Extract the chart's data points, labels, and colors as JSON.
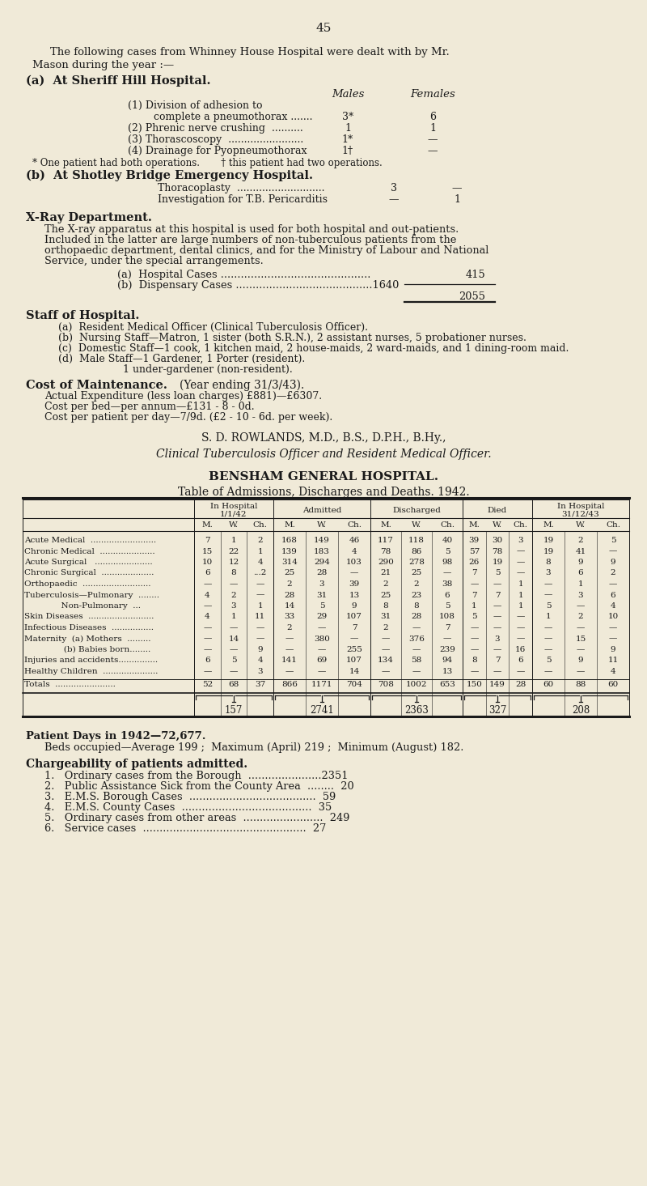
{
  "bg_color": "#f0ead8",
  "text_color": "#1a1a1a",
  "page_number": "45",
  "intro_line1": "The following cases from Whinney House Hospital were dealt with by Mr.",
  "intro_line2": "Mason during the year :—",
  "section_a_title": "(a)  At Sheriff Hill Hospital.",
  "males_header": "Males",
  "females_header": "Females",
  "sheriff_rows": [
    [
      "(1) Division of adhesion to",
      "",
      ""
    ],
    [
      "        complete a pneumothorax .......",
      "3*",
      "6"
    ],
    [
      "(2) Phrenic nerve crushing  ..........",
      "1",
      "1"
    ],
    [
      "(3) Thorascoscopy  ........................",
      "1*",
      "—"
    ],
    [
      "(4) Drainage for Pyopneumothorax",
      "1†",
      "—"
    ]
  ],
  "sheriff_footnote": "* One patient had both operations.       † this patient had two operations.",
  "section_b_title": "(b)  At Shotley Bridge Emergency Hospital.",
  "shotley_rows": [
    [
      "Thoracoplasty  ............................",
      "3",
      "—"
    ],
    [
      "Investigation for T.B. Pericarditis",
      "—",
      "1"
    ]
  ],
  "xray_title": "X-Ray Department.",
  "xray_lines": [
    "The X-ray apparatus at this hospital is used for both hospital and out-patients.",
    "Included in the latter are large numbers of non-tuberculous patients from the",
    "orthopaedic department, dental clinics, and for the Ministry of Labour and National",
    "Service, under the special arrangements."
  ],
  "xray_a": "(a)  Hospital Cases .............................................",
  "xray_a_val": "415",
  "xray_b": "(b)  Dispensary Cases .........................................1640",
  "xray_total": "2055",
  "staff_title": "Staff of Hospital.",
  "staff_rows": [
    "(a)  Resident Medical Officer (Clinical Tuberculosis Officer).",
    "(b)  Nursing Staff—Matron, 1 sister (both S.R.N.), 2 assistant nurses, 5 probationer nurses.",
    "(c)  Domestic Staff—1 cook, 1 kitchen maid, 2 house-maids, 2 ward-maids, and 1 dining-room maid.",
    "(d)  Male Staff—1 Gardener, 1 Porter (resident).",
    "                    1 under-gardener (non-resident)."
  ],
  "cost_title": "Cost of Maintenance.",
  "cost_subtitle": "(Year ending 31/3/43).",
  "cost_rows": [
    "Actual Expenditure (less loan charges) £881)—£6307.",
    "Cost per bed—per annum—£131 - 8 - 0d.",
    "Cost per patient per day—7/9d. (£2 - 10 - 6d. per week)."
  ],
  "signature1": "S. D. ROWLANDS, M.D., B.S., D.P.H., B.Hy.,",
  "signature2": "Clinical Tuberculosis Officer and Resident Medical Officer.",
  "bensham_title": "BENSHAM GENERAL HOSPITAL.",
  "bensham_subtitle": "Table of Admissions, Discharges and Deaths. 1942.",
  "group_labels": [
    "In Hospital\n1/1/42",
    "Admitted",
    "Discharged",
    "Died",
    "In Hospital\n31/12/43"
  ],
  "sub_labels": [
    "M.",
    "W.",
    "Ch."
  ],
  "table_rows": [
    [
      "Acute Medical  .........................",
      "7",
      "1",
      "2",
      "168",
      "149",
      "46",
      "117",
      "118",
      "40",
      "39",
      "30",
      "3",
      "19",
      "2",
      "5"
    ],
    [
      "Chronic Medical  .....................",
      "15",
      "22",
      "1",
      "139",
      "183",
      "4",
      "78",
      "86",
      "5",
      "57",
      "78",
      "—",
      "19",
      "41",
      "—"
    ],
    [
      "Acute Surgical   ......................",
      "10",
      "12",
      "4",
      "314",
      "294",
      "103",
      "290",
      "278",
      "98",
      "26",
      "19",
      "—",
      "8",
      "9",
      "9"
    ],
    [
      "Chronic Surgical  ....................",
      "6",
      "8",
      "...2",
      "25",
      "28",
      "—",
      "21",
      "25",
      "—",
      "7",
      "5",
      "—",
      "3",
      "6",
      "2"
    ],
    [
      "Orthopaedic  ..........................",
      "—",
      "—",
      "—",
      "2",
      "3",
      "39",
      "2",
      "2",
      "38",
      "—",
      "—",
      "1",
      "—",
      "1",
      "—"
    ],
    [
      "Tuberculosis—Pulmonary  ........",
      "4",
      "2",
      "—",
      "28",
      "31",
      "13",
      "25",
      "23",
      "6",
      "7",
      "7",
      "1",
      "—",
      "3",
      "6"
    ],
    [
      "              Non-Pulmonary  ...",
      "—",
      "3",
      "1",
      "14",
      "5",
      "9",
      "8",
      "8",
      "5",
      "1",
      "—",
      "1",
      "5",
      "—",
      "4"
    ],
    [
      "Skin Diseases  .........................",
      "4",
      "1",
      "11",
      "33",
      "29",
      "107",
      "31",
      "28",
      "108",
      "5",
      "—",
      "—",
      "1",
      "2",
      "10"
    ],
    [
      "Infectious Diseases  ................",
      "—",
      "—",
      "—",
      "2",
      "—",
      "7",
      "2",
      "—",
      "7",
      "—",
      "—",
      "—",
      "—",
      "—",
      "—"
    ],
    [
      "Maternity  (a) Mothers  .........",
      "—",
      "14",
      "—",
      "—",
      "380",
      "—",
      "—",
      "376",
      "—",
      "—",
      "3",
      "—",
      "—",
      "15",
      "—"
    ],
    [
      "               (b) Babies born........",
      "—",
      "—",
      "9",
      "—",
      "—",
      "255",
      "—",
      "—",
      "239",
      "—",
      "—",
      "16",
      "—",
      "—",
      "9"
    ],
    [
      "Injuries and accidents...............",
      "6",
      "5",
      "4",
      "141",
      "69",
      "107",
      "134",
      "58",
      "94",
      "8",
      "7",
      "6",
      "5",
      "9",
      "11"
    ],
    [
      "Healthy Children  .....................",
      "—",
      "—",
      "3",
      "—",
      "—",
      "14",
      "—",
      "—",
      "13",
      "—",
      "—",
      "—",
      "—",
      "—",
      "4"
    ]
  ],
  "table_totals": [
    "Totals  .......................",
    "52",
    "68",
    "37",
    "866",
    "1171",
    "704",
    "708",
    "1002",
    "653",
    "150",
    "149",
    "28",
    "60",
    "88",
    "60"
  ],
  "table_subtotals": [
    "157",
    "2741",
    "2363",
    "327",
    "208"
  ],
  "patient_days": "Patient Days in 1942—72,677.",
  "beds_text": "Beds occupied—Average 199 ;  Maximum (April) 219 ;  Minimum (August) 182.",
  "chargeability_title": "Chargeability of patients admitted.",
  "chargeability_rows": [
    "1.   Ordinary cases from the Borough  ......................2351",
    "2.   Public Assistance Sick from the County Area  ........  20",
    "3.   E.M.S. Borough Cases  ......................................  59",
    "4.   E.M.S. County Cases  .......................................  35",
    "5.   Ordinary cases from other areas  ........................  249",
    "6.   Service cases  .................................................  27"
  ],
  "group_starts": [
    240,
    338,
    458,
    572,
    658
  ],
  "group_ends": [
    338,
    458,
    572,
    658,
    778
  ]
}
